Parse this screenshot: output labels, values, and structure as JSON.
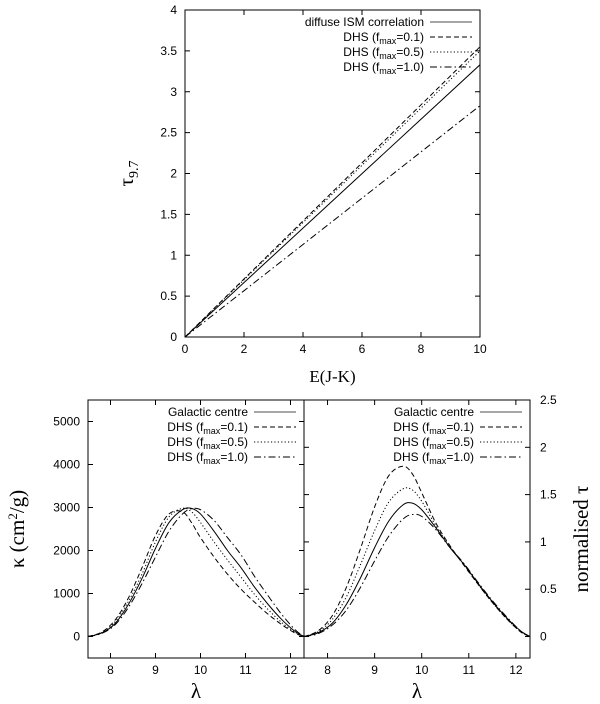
{
  "chart_data": [
    {
      "type": "line",
      "title": "",
      "xlabel": "E(J-K)",
      "ylabel": "τ",
      "ylabel_sub": "9.7",
      "xlim": [
        0,
        10
      ],
      "ylim": [
        0,
        4
      ],
      "xticks": [
        0,
        2,
        4,
        6,
        8,
        10
      ],
      "yticks": [
        0,
        0.5,
        1,
        1.5,
        2,
        2.5,
        3,
        3.5,
        4
      ],
      "grid": false,
      "legend_position": "top-right",
      "series": [
        {
          "name": "diffuse ISM correlation",
          "legend": {
            "pre": "diffuse ISM correlation",
            "sub": "",
            "post": ""
          },
          "style": "solid",
          "x": [
            0,
            10
          ],
          "y": [
            0,
            3.33
          ]
        },
        {
          "name": "DHS (fmax=0.1)",
          "legend": {
            "pre": "DHS (f",
            "sub": "max",
            "post": "=0.1)"
          },
          "style": "dashed",
          "x": [
            0,
            10
          ],
          "y": [
            0,
            3.55
          ]
        },
        {
          "name": "DHS (fmax=0.5)",
          "legend": {
            "pre": "DHS (f",
            "sub": "max",
            "post": "=0.5)"
          },
          "style": "dotted",
          "x": [
            0,
            10
          ],
          "y": [
            0,
            3.5
          ]
        },
        {
          "name": "DHS (fmax=1.0)",
          "legend": {
            "pre": "DHS (f",
            "sub": "max",
            "post": "=1.0)"
          },
          "style": "dashdot",
          "x": [
            0,
            10
          ],
          "y": [
            0,
            2.83
          ]
        }
      ]
    },
    {
      "type": "line",
      "title": "",
      "xlabel": "λ",
      "ylabel": "κ (cm",
      "ylabel_sup": "2",
      "ylabel_post": "/g)",
      "xlim": [
        7.5,
        12.3
      ],
      "ylim": [
        -500,
        5500
      ],
      "xticks": [
        8,
        9,
        10,
        11,
        12
      ],
      "yticks": [
        0,
        1000,
        2000,
        3000,
        4000,
        5000
      ],
      "grid": false,
      "legend_position": "top-right",
      "series": [
        {
          "name": "Galactic centre",
          "legend": {
            "pre": "Galactic centre",
            "sub": "",
            "post": ""
          },
          "style": "solid",
          "x": [
            7.5,
            7.8,
            8.1,
            8.4,
            8.7,
            9.0,
            9.3,
            9.6,
            9.8,
            10.0,
            10.3,
            10.6,
            10.9,
            11.2,
            11.5,
            11.8,
            12.1,
            12.3
          ],
          "y": [
            0,
            80,
            300,
            750,
            1350,
            2050,
            2650,
            2950,
            2980,
            2850,
            2450,
            2000,
            1600,
            1150,
            750,
            400,
            120,
            0
          ]
        },
        {
          "name": "DHS (fmax=0.1)",
          "legend": {
            "pre": "DHS (f",
            "sub": "max",
            "post": "=0.1)"
          },
          "style": "dashed",
          "x": [
            7.5,
            7.8,
            8.1,
            8.4,
            8.7,
            9.0,
            9.3,
            9.6,
            9.8,
            10.0,
            10.3,
            10.6,
            10.9,
            11.2,
            11.5,
            11.8,
            12.1,
            12.3
          ],
          "y": [
            0,
            100,
            380,
            900,
            1600,
            2350,
            2850,
            2900,
            2650,
            2300,
            1850,
            1450,
            1100,
            800,
            520,
            280,
            80,
            0
          ]
        },
        {
          "name": "DHS (fmax=0.5)",
          "legend": {
            "pre": "DHS (f",
            "sub": "max",
            "post": "=0.5)"
          },
          "style": "dotted",
          "x": [
            7.5,
            7.8,
            8.1,
            8.4,
            8.7,
            9.0,
            9.3,
            9.6,
            9.8,
            10.0,
            10.3,
            10.6,
            10.9,
            11.2,
            11.5,
            11.8,
            12.1,
            12.3
          ],
          "y": [
            0,
            90,
            340,
            820,
            1450,
            2200,
            2780,
            2980,
            2900,
            2650,
            2200,
            1780,
            1380,
            980,
            630,
            330,
            100,
            0
          ]
        },
        {
          "name": "DHS (fmax=1.0)",
          "legend": {
            "pre": "DHS (f",
            "sub": "max",
            "post": "=1.0)"
          },
          "style": "dashdot",
          "x": [
            7.5,
            7.8,
            8.1,
            8.4,
            8.7,
            9.0,
            9.3,
            9.6,
            9.8,
            10.0,
            10.3,
            10.6,
            10.9,
            11.2,
            11.5,
            11.8,
            12.1,
            12.3
          ],
          "y": [
            0,
            70,
            270,
            680,
            1230,
            1850,
            2450,
            2850,
            2970,
            2950,
            2700,
            2300,
            1900,
            1400,
            950,
            520,
            160,
            0
          ]
        }
      ]
    },
    {
      "type": "line",
      "title": "",
      "xlabel": "λ",
      "ylabel": "normalised τ",
      "xlim": [
        7.5,
        12.3
      ],
      "ylim": [
        -0.227,
        2.5
      ],
      "xticks": [
        8,
        9,
        10,
        11,
        12
      ],
      "yticks": [
        0,
        0.5,
        1,
        1.5,
        2,
        2.5
      ],
      "grid": false,
      "legend_position": "top-right",
      "series": [
        {
          "name": "Galactic centre",
          "legend": {
            "pre": "Galactic centre",
            "sub": "",
            "post": ""
          },
          "style": "solid",
          "x": [
            7.5,
            7.8,
            8.1,
            8.4,
            8.7,
            9.0,
            9.3,
            9.6,
            9.8,
            10.0,
            10.3,
            10.6,
            10.9,
            11.2,
            11.5,
            11.8,
            12.1,
            12.3
          ],
          "y": [
            0,
            0.04,
            0.14,
            0.34,
            0.62,
            0.94,
            1.22,
            1.39,
            1.41,
            1.34,
            1.15,
            0.94,
            0.76,
            0.56,
            0.37,
            0.2,
            0.06,
            0
          ]
        },
        {
          "name": "DHS (fmax=0.1)",
          "legend": {
            "pre": "DHS (f",
            "sub": "max",
            "post": "=0.1)"
          },
          "style": "dashed",
          "x": [
            7.5,
            7.8,
            8.1,
            8.4,
            8.7,
            9.0,
            9.3,
            9.6,
            9.8,
            10.0,
            10.3,
            10.6,
            10.9,
            11.2,
            11.5,
            11.8,
            12.1,
            12.3
          ],
          "y": [
            0,
            0.06,
            0.22,
            0.52,
            0.93,
            1.37,
            1.7,
            1.8,
            1.72,
            1.52,
            1.2,
            0.96,
            0.75,
            0.55,
            0.36,
            0.19,
            0.05,
            0
          ]
        },
        {
          "name": "DHS (fmax=0.5)",
          "legend": {
            "pre": "DHS (f",
            "sub": "max",
            "post": "=0.5)"
          },
          "style": "dotted",
          "x": [
            7.5,
            7.8,
            8.1,
            8.4,
            8.7,
            9.0,
            9.3,
            9.6,
            9.8,
            10.0,
            10.3,
            10.6,
            10.9,
            11.2,
            11.5,
            11.8,
            12.1,
            12.3
          ],
          "y": [
            0,
            0.05,
            0.18,
            0.42,
            0.76,
            1.12,
            1.42,
            1.56,
            1.55,
            1.43,
            1.17,
            0.95,
            0.76,
            0.55,
            0.36,
            0.19,
            0.05,
            0
          ]
        },
        {
          "name": "DHS (fmax=1.0)",
          "legend": {
            "pre": "DHS (f",
            "sub": "max",
            "post": "=1.0)"
          },
          "style": "dashdot",
          "x": [
            7.5,
            7.8,
            8.1,
            8.4,
            8.7,
            9.0,
            9.3,
            9.6,
            9.8,
            10.0,
            10.3,
            10.6,
            10.9,
            11.2,
            11.5,
            11.8,
            12.1,
            12.3
          ],
          "y": [
            0,
            0.03,
            0.12,
            0.28,
            0.52,
            0.8,
            1.06,
            1.24,
            1.29,
            1.27,
            1.13,
            0.94,
            0.77,
            0.57,
            0.38,
            0.21,
            0.06,
            0
          ]
        }
      ]
    }
  ],
  "colors": {
    "line": "#000000",
    "legend_sample_solid": "#888888",
    "background": "#ffffff"
  }
}
